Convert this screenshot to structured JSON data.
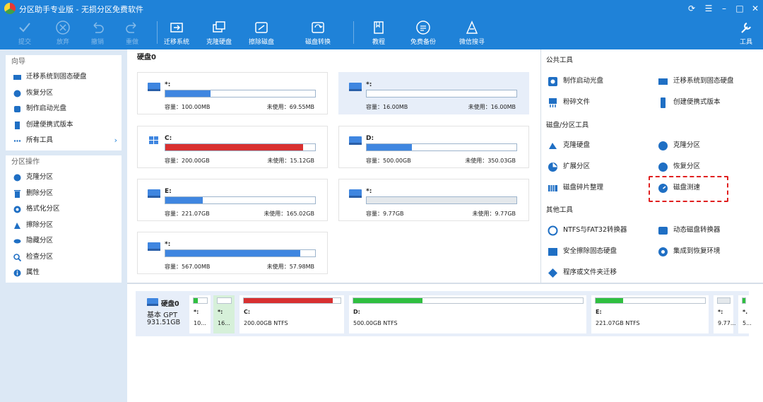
{
  "window": {
    "title": "分区助手专业版 - 无损分区免费软件"
  },
  "toolbar": {
    "commit": "提交",
    "discard": "放弃",
    "undo": "撤销",
    "redo": "重做",
    "migrate": "迁移系统",
    "clone": "克隆硬盘",
    "wipe": "擦除磁盘",
    "convert": "磁盘转换",
    "tutorial": "教程",
    "backup": "免费备份",
    "wechat": "微信搜寻",
    "tools": "工具"
  },
  "sidebar": {
    "wizard_header": "向导",
    "wizard_items": [
      "迁移系统到固态硬盘",
      "恢复分区",
      "制作启动光盘",
      "创建便携式版本",
      "所有工具"
    ],
    "ops_header": "分区操作",
    "ops_items": [
      "克隆分区",
      "删除分区",
      "格式化分区",
      "擦除分区",
      "隐藏分区",
      "检查分区",
      "属性"
    ]
  },
  "main": {
    "disk_label": "硬盘0",
    "cap_label": "容量：",
    "free_label": "未使用：",
    "partitions": [
      {
        "name": "*:",
        "capacity": "100.00MB",
        "free": "69.55MB",
        "used_frac": 0.3,
        "color": "#3f86e0",
        "os": false
      },
      {
        "name": "*:",
        "capacity": "16.00MB",
        "free": "16.00MB",
        "used_frac": 0.0,
        "color": "#3f86e0",
        "os": false
      },
      {
        "name": "C:",
        "capacity": "200.00GB",
        "free": "15.12GB",
        "used_frac": 0.92,
        "color": "#d83030",
        "os": true
      },
      {
        "name": "D:",
        "capacity": "500.00GB",
        "free": "350.03GB",
        "used_frac": 0.3,
        "color": "#3f86e0",
        "os": false
      },
      {
        "name": "E:",
        "capacity": "221.07GB",
        "free": "165.02GB",
        "used_frac": 0.25,
        "color": "#3f86e0",
        "os": false
      },
      {
        "name": "*:",
        "capacity": "9.77GB",
        "free": "9.77GB",
        "used_frac": 1.0,
        "color": "#e4e8ec",
        "os": false
      },
      {
        "name": "*:",
        "capacity": "567.00MB",
        "free": "57.98MB",
        "used_frac": 0.9,
        "color": "#3f86e0",
        "os": false
      }
    ]
  },
  "right_panel": {
    "public_tools": "公共工具",
    "public_items": [
      "制作启动光盘",
      "迁移系统到固态硬盘",
      "粉碎文件",
      "创建便携式版本"
    ],
    "disk_tools": "磁盘/分区工具",
    "disk_items": [
      "克隆硬盘",
      "克隆分区",
      "扩展分区",
      "恢复分区",
      "磁盘碎片整理",
      "磁盘测速"
    ],
    "other_tools": "其他工具",
    "other_items": [
      "NTFS与FAT32转换器",
      "动态磁盘转换器",
      "安全擦除固态硬盘",
      "集成到恢复环境",
      "程序或文件夹迁移"
    ]
  },
  "bottom": {
    "disk_name": "硬盘0",
    "disk_type": "基本 GPT",
    "disk_size": "931.51GB",
    "segments": [
      {
        "name": "*:",
        "detail": "10...",
        "fill_frac": 0.3,
        "color": "#2fbf3f",
        "selected": false
      },
      {
        "name": "*:",
        "detail": "16...",
        "fill_frac": 0.0,
        "color": "#2fbf3f",
        "selected": true
      },
      {
        "name": "C:",
        "detail": "200.00GB NTFS",
        "fill_frac": 0.92,
        "color": "#d83030",
        "selected": false
      },
      {
        "name": "D:",
        "detail": "500.00GB NTFS",
        "fill_frac": 0.3,
        "color": "#2fbf3f",
        "selected": false
      },
      {
        "name": "E:",
        "detail": "221.07GB NTFS",
        "fill_frac": 0.25,
        "color": "#2fbf3f",
        "selected": false
      },
      {
        "name": "*:",
        "detail": "9.77...",
        "fill_frac": 1.0,
        "color": "#e4e8ec",
        "selected": false
      },
      {
        "name": "*.",
        "detail": "5...",
        "fill_frac": 0.9,
        "color": "#2fbf3f",
        "selected": false
      }
    ]
  }
}
